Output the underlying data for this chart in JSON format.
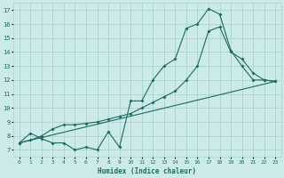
{
  "xlabel": "Humidex (Indice chaleur)",
  "xlim": [
    -0.5,
    23.5
  ],
  "ylim": [
    6.5,
    17.5
  ],
  "xticks": [
    0,
    1,
    2,
    3,
    4,
    5,
    6,
    7,
    8,
    9,
    10,
    11,
    12,
    13,
    14,
    15,
    16,
    17,
    18,
    19,
    20,
    21,
    22,
    23
  ],
  "yticks": [
    7,
    8,
    9,
    10,
    11,
    12,
    13,
    14,
    15,
    16,
    17
  ],
  "bg_color": "#cceae7",
  "grid_color": "#aad4d0",
  "line_color": "#1a6b64",
  "line1_x": [
    0,
    1,
    2,
    3,
    4,
    5,
    6,
    7,
    8,
    9,
    10,
    11,
    12,
    13,
    14,
    15,
    16,
    17,
    18,
    19,
    20,
    21,
    22,
    23
  ],
  "line1_y": [
    7.5,
    8.2,
    7.8,
    7.5,
    7.5,
    7.0,
    7.2,
    7.0,
    8.3,
    7.2,
    10.5,
    10.5,
    12.0,
    13.0,
    13.5,
    15.7,
    16.0,
    17.1,
    16.7,
    14.1,
    13.0,
    12.0,
    12.0,
    11.9
  ],
  "line2_x": [
    0,
    23
  ],
  "line2_y": [
    7.5,
    11.9
  ],
  "line3_x": [
    0,
    1,
    2,
    3,
    4,
    5,
    6,
    7,
    8,
    9,
    10,
    11,
    12,
    13,
    14,
    15,
    16,
    17,
    18,
    19,
    20,
    21,
    22,
    23
  ],
  "line3_y": [
    7.5,
    7.7,
    8.0,
    8.5,
    8.8,
    8.8,
    8.9,
    9.0,
    9.2,
    9.4,
    9.6,
    10.0,
    10.4,
    10.8,
    11.2,
    12.0,
    13.0,
    15.5,
    15.8,
    14.0,
    13.5,
    12.5,
    12.0,
    11.9
  ],
  "figsize": [
    3.2,
    2.0
  ],
  "dpi": 100
}
